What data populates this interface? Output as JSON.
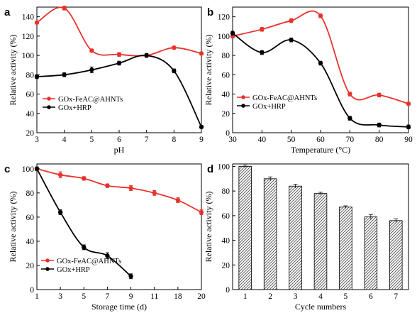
{
  "colors": {
    "red": "#e8312b",
    "black": "#000000",
    "bar_fill": "#ffffff",
    "bar_hatch": "#444444"
  },
  "chart_data": [
    {
      "panel": "a",
      "type": "line",
      "xlabel": "pH",
      "ylabel": "Relative activity (%)",
      "xlim": [
        3,
        9
      ],
      "ylim": [
        20,
        150
      ],
      "xticks": [
        "3",
        "4",
        "5",
        "6",
        "7",
        "8",
        "9"
      ],
      "yticks": [
        "20",
        "40",
        "60",
        "80",
        "100",
        "120",
        "140"
      ],
      "legend_position": "middle-left",
      "series": [
        {
          "name": "GOx-FeAC@AHNTs",
          "color": "red",
          "marker": "circle",
          "x": [
            3,
            4,
            5,
            6,
            7,
            8,
            9
          ],
          "y": [
            134,
            149,
            105,
            101,
            100,
            108,
            102
          ],
          "err": [
            1.5,
            2,
            1.5,
            2,
            1.5,
            1.5,
            1.5
          ]
        },
        {
          "name": "GOx+HRP",
          "color": "black",
          "marker": "circle",
          "x": [
            3,
            4,
            5,
            6,
            7,
            8,
            9
          ],
          "y": [
            78,
            80,
            85,
            92,
            100,
            84,
            26
          ],
          "err": [
            2,
            2,
            3,
            2,
            2,
            2,
            1.5
          ]
        }
      ]
    },
    {
      "panel": "b",
      "type": "line",
      "xlabel": "Temperature (°C)",
      "ylabel": "Relative activity (%)",
      "xlim": [
        30,
        90
      ],
      "ylim": [
        0,
        130
      ],
      "xticks": [
        "30",
        "40",
        "50",
        "60",
        "70",
        "80",
        "90"
      ],
      "yticks": [
        "0",
        "20",
        "40",
        "60",
        "80",
        "100",
        "120"
      ],
      "legend_position": "middle-left",
      "series": [
        {
          "name": "GOx-FeAC@AHNTs",
          "color": "red",
          "marker": "circle",
          "x": [
            30,
            40,
            50,
            60,
            70,
            80,
            90
          ],
          "y": [
            100,
            107,
            116,
            121,
            40,
            39,
            30
          ],
          "err": [
            2,
            2,
            2,
            2,
            2,
            2,
            1.5
          ]
        },
        {
          "name": "GOx+HRP",
          "color": "black",
          "marker": "circle",
          "x": [
            30,
            40,
            50,
            60,
            70,
            80,
            90
          ],
          "y": [
            103,
            83,
            96,
            72,
            15,
            8,
            6
          ],
          "err": [
            2,
            2,
            2,
            2,
            2,
            2,
            2
          ]
        }
      ]
    },
    {
      "panel": "c",
      "type": "line",
      "xlabel": "Storage time (d)",
      "ylabel": "Relative activity (%)",
      "ylim": [
        0,
        104
      ],
      "categories": [
        "1",
        "3",
        "5",
        "7",
        "9",
        "11",
        "18",
        "20"
      ],
      "yticks": [
        "0",
        "20",
        "40",
        "60",
        "80",
        "100"
      ],
      "legend_position": "bottom-left",
      "series": [
        {
          "name": "GOx-FeAC@AHNTs",
          "color": "red",
          "marker": "circle",
          "x": [
            "1",
            "3",
            "5",
            "7",
            "9",
            "11",
            "18",
            "20"
          ],
          "y": [
            100,
            95,
            92,
            86,
            84,
            80,
            74,
            64
          ],
          "err": [
            1.5,
            2.5,
            1.5,
            1.5,
            2,
            2,
            2,
            2
          ]
        },
        {
          "name": "GOx+HRP",
          "color": "black",
          "marker": "circle",
          "x": [
            "1",
            "3",
            "5",
            "7",
            "9"
          ],
          "y": [
            100,
            64,
            35,
            28,
            11
          ],
          "err": [
            1.5,
            2,
            2,
            2.5,
            2
          ]
        }
      ]
    },
    {
      "panel": "d",
      "type": "bar",
      "xlabel": "Cycle numbers",
      "ylabel": "Relative activity (%)",
      "ylim": [
        0,
        102
      ],
      "categories": [
        "1",
        "2",
        "3",
        "4",
        "5",
        "6",
        "7"
      ],
      "yticks": [
        "0",
        "20",
        "40",
        "60",
        "80",
        "100"
      ],
      "values": [
        100,
        90,
        84,
        78,
        67,
        59,
        56
      ],
      "err": [
        1,
        1.5,
        1.5,
        1,
        1,
        2,
        1.5
      ]
    }
  ]
}
